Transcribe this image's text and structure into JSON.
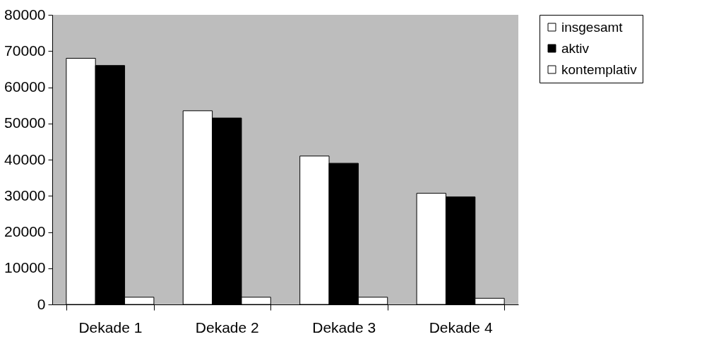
{
  "chart_data": {
    "type": "bar",
    "categories": [
      "Dekade 1",
      "Dekade 2",
      "Dekade 3",
      "Dekade 4"
    ],
    "series": [
      {
        "name": "insgesamt",
        "color": "#ffffff",
        "values": [
          68000,
          53500,
          41000,
          30700
        ]
      },
      {
        "name": "aktiv",
        "color": "#000000",
        "values": [
          66000,
          51500,
          39000,
          29700
        ]
      },
      {
        "name": "kontemplativ",
        "color": "#ffffff",
        "values": [
          2000,
          2000,
          2000,
          1700
        ]
      }
    ],
    "ylim": [
      0,
      80000
    ],
    "yticks": [
      0,
      10000,
      20000,
      30000,
      40000,
      50000,
      60000,
      70000,
      80000
    ],
    "grid": false,
    "legend": "right"
  }
}
